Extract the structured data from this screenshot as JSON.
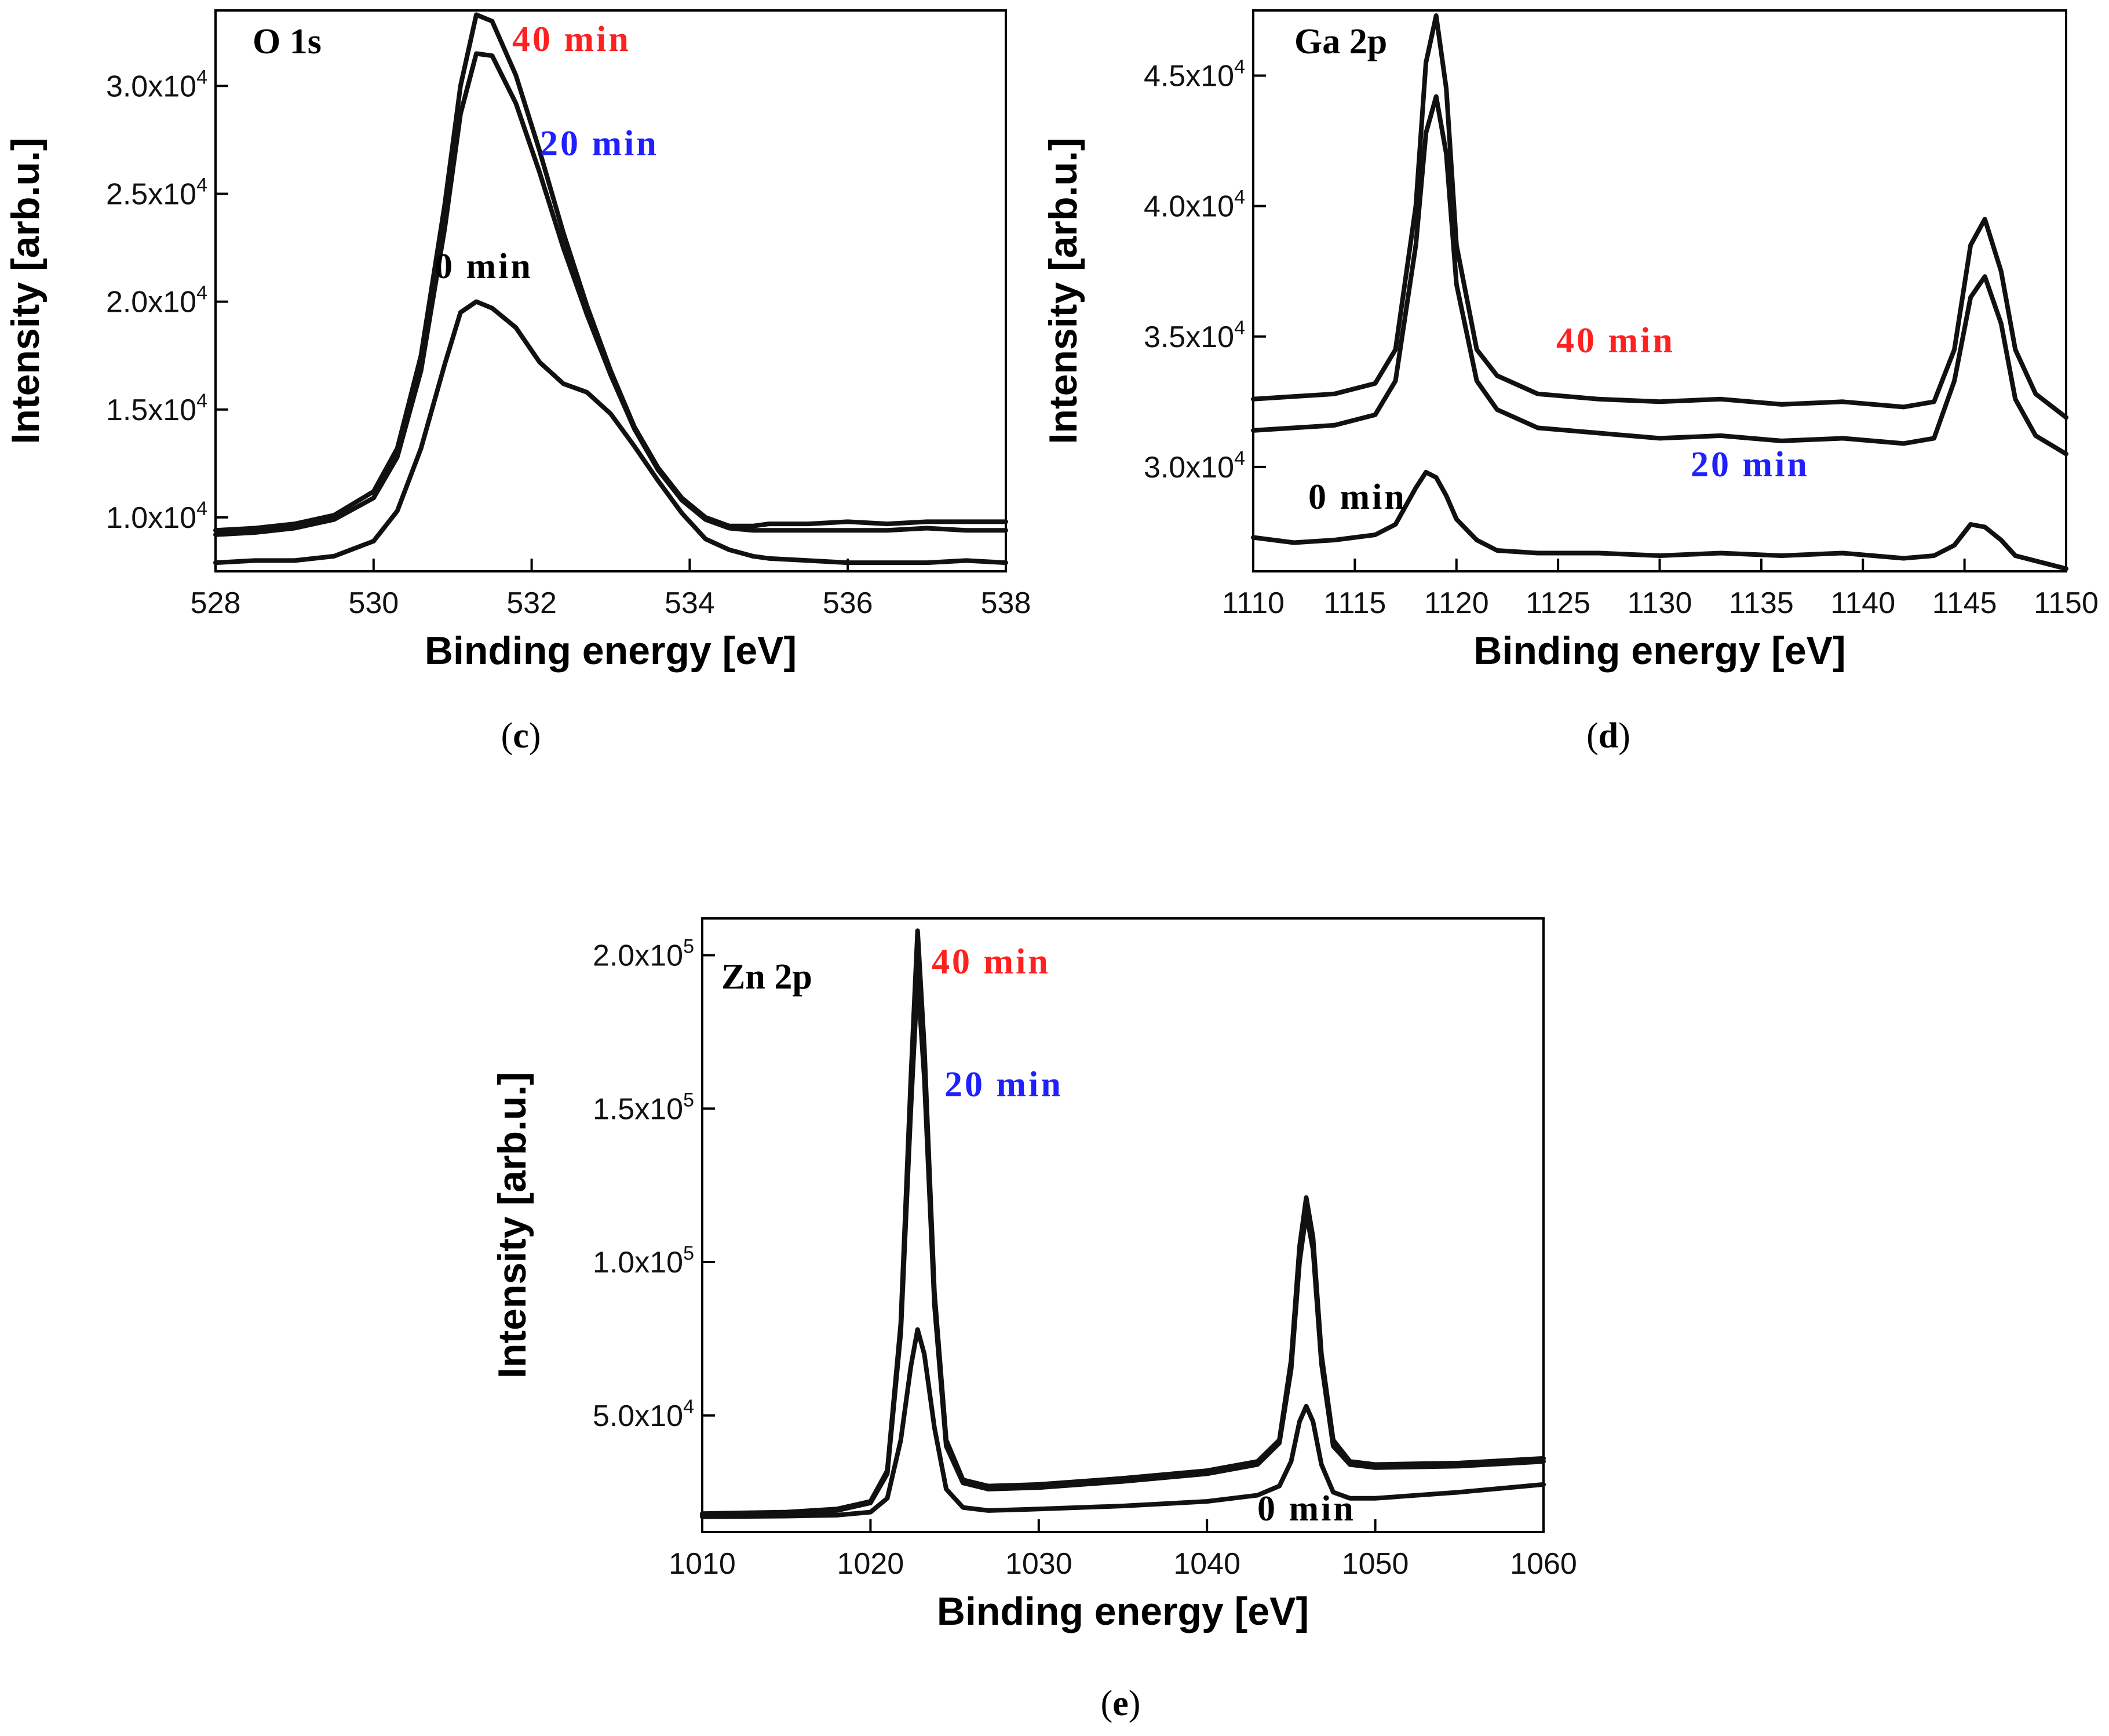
{
  "chart_data": [
    {
      "panel": "c",
      "type": "line",
      "title": "O 1s",
      "xlabel": "Binding energy [eV]",
      "ylabel": "Intensity [arb.u.]",
      "xlim": [
        528,
        538
      ],
      "ylim": [
        7500,
        33500
      ],
      "x_ticks": [
        528,
        530,
        532,
        534,
        536,
        538
      ],
      "y_ticks": [
        10000,
        15000,
        20000,
        25000,
        30000
      ],
      "y_tick_mantissa": [
        "1.0",
        "1.5",
        "2.0",
        "2.5",
        "3.0"
      ],
      "y_tick_exp": "4",
      "y_tick_base": "x10",
      "panel_label": "c",
      "series": [
        {
          "name": "40 min",
          "label_color": "#ff2020",
          "x": [
            528,
            528.5,
            529,
            529.5,
            530,
            530.3,
            530.6,
            530.9,
            531.1,
            531.3,
            531.5,
            531.8,
            532.1,
            532.4,
            532.7,
            533,
            533.3,
            533.6,
            533.9,
            534.2,
            534.5,
            534.8,
            535,
            535.5,
            536,
            536.5,
            537,
            537.5,
            538
          ],
          "y": [
            9400,
            9500,
            9700,
            10100,
            11200,
            13200,
            17500,
            24500,
            30000,
            33300,
            33000,
            30500,
            27000,
            23200,
            19800,
            16800,
            14200,
            12300,
            10900,
            10000,
            9600,
            9600,
            9700,
            9700,
            9800,
            9700,
            9800,
            9800,
            9800
          ]
        },
        {
          "name": "20 min",
          "label_color": "#2020ff",
          "x": [
            528,
            528.5,
            529,
            529.5,
            530,
            530.3,
            530.6,
            530.9,
            531.1,
            531.3,
            531.5,
            531.8,
            532.1,
            532.4,
            532.7,
            533,
            533.3,
            533.6,
            533.9,
            534.2,
            534.5,
            534.8,
            535,
            535.5,
            536,
            536.5,
            537,
            537.5,
            538
          ],
          "y": [
            9200,
            9300,
            9500,
            9900,
            10900,
            12800,
            16800,
            23400,
            28700,
            31500,
            31400,
            29200,
            26000,
            22500,
            19400,
            16600,
            14100,
            12200,
            10800,
            9900,
            9500,
            9400,
            9400,
            9400,
            9400,
            9400,
            9500,
            9400,
            9400
          ]
        },
        {
          "name": "0 min",
          "label_color": "#000000",
          "x": [
            528,
            528.5,
            529,
            529.5,
            530,
            530.3,
            530.6,
            530.9,
            531.1,
            531.3,
            531.5,
            531.8,
            532.1,
            532.4,
            532.7,
            533,
            533.3,
            533.6,
            533.9,
            534.2,
            534.5,
            534.8,
            535,
            535.5,
            536,
            536.5,
            537,
            537.5,
            538
          ],
          "y": [
            7900,
            8000,
            8000,
            8200,
            8900,
            10300,
            13200,
            17100,
            19500,
            20000,
            19700,
            18800,
            17200,
            16200,
            15800,
            14800,
            13300,
            11700,
            10200,
            9000,
            8500,
            8200,
            8100,
            8000,
            7900,
            7900,
            7900,
            8000,
            7900
          ]
        }
      ]
    },
    {
      "panel": "d",
      "type": "line",
      "title": "Ga 2p",
      "xlabel": "Binding energy [eV]",
      "ylabel": "Intensity [arb.u.]",
      "xlim": [
        1110,
        1150
      ],
      "ylim": [
        26000,
        47500
      ],
      "x_ticks": [
        1110,
        1115,
        1120,
        1125,
        1130,
        1135,
        1140,
        1145,
        1150
      ],
      "y_ticks": [
        30000,
        35000,
        40000,
        45000
      ],
      "y_tick_mantissa": [
        "3.0",
        "3.5",
        "4.0",
        "4.5"
      ],
      "y_tick_exp": "4",
      "y_tick_base": "x10",
      "panel_label": "d",
      "series": [
        {
          "name": "40 min",
          "label_color": "#ff2020",
          "x": [
            1110,
            1112,
            1114,
            1116,
            1117,
            1118,
            1118.5,
            1119,
            1119.5,
            1120,
            1121,
            1122,
            1124,
            1127,
            1130,
            1133,
            1136,
            1139,
            1142,
            1143.5,
            1144.5,
            1145.3,
            1146,
            1146.8,
            1147.5,
            1148.5,
            1150
          ],
          "y": [
            32600,
            32700,
            32800,
            33200,
            34500,
            40000,
            45500,
            47300,
            44500,
            38500,
            34500,
            33500,
            32800,
            32600,
            32500,
            32600,
            32400,
            32500,
            32300,
            32500,
            34500,
            38500,
            39500,
            37500,
            34500,
            32800,
            31900
          ]
        },
        {
          "name": "20 min",
          "label_color": "#2020ff",
          "x": [
            1110,
            1112,
            1114,
            1116,
            1117,
            1118,
            1118.5,
            1119,
            1119.5,
            1120,
            1121,
            1122,
            1124,
            1127,
            1130,
            1133,
            1136,
            1139,
            1142,
            1143.5,
            1144.5,
            1145.3,
            1146,
            1146.8,
            1147.5,
            1148.5,
            1150
          ],
          "y": [
            31400,
            31500,
            31600,
            32000,
            33300,
            38500,
            42800,
            44200,
            42000,
            37000,
            33300,
            32200,
            31500,
            31300,
            31100,
            31200,
            31000,
            31100,
            30900,
            31100,
            33300,
            36500,
            37300,
            35500,
            32600,
            31200,
            30500
          ]
        },
        {
          "name": "0 min",
          "label_color": "#000000",
          "x": [
            1110,
            1112,
            1114,
            1116,
            1117,
            1118,
            1118.5,
            1119,
            1119.5,
            1120,
            1121,
            1122,
            1124,
            1127,
            1130,
            1133,
            1136,
            1139,
            1142,
            1143.5,
            1144.5,
            1145.3,
            1146,
            1146.8,
            1147.5,
            1148.5,
            1150
          ],
          "y": [
            27300,
            27100,
            27200,
            27400,
            27800,
            29200,
            29800,
            29600,
            28900,
            28000,
            27200,
            26800,
            26700,
            26700,
            26600,
            26700,
            26600,
            26700,
            26500,
            26600,
            27000,
            27800,
            27700,
            27200,
            26600,
            26400,
            26100
          ]
        }
      ]
    },
    {
      "panel": "e",
      "type": "line",
      "title": "Zn 2p",
      "xlabel": "Binding energy [eV]",
      "ylabel": "Intensity [arb.u.]",
      "xlim": [
        1010,
        1060
      ],
      "ylim": [
        12000,
        212000
      ],
      "x_ticks": [
        1010,
        1020,
        1030,
        1040,
        1050,
        1060
      ],
      "y_ticks": [
        50000,
        100000,
        150000,
        200000
      ],
      "y_tick_mantissa": [
        "5.0",
        "1.0",
        "1.5",
        "2.0"
      ],
      "y_tick_exp": [
        "4",
        "5",
        "5",
        "5"
      ],
      "y_tick_base": "x10",
      "panel_label": "e",
      "series": [
        {
          "name": "40 min",
          "label_color": "#ff2020",
          "x": [
            1010,
            1015,
            1018,
            1020,
            1021,
            1021.8,
            1022.4,
            1022.8,
            1023.2,
            1023.8,
            1024.5,
            1025.5,
            1027,
            1030,
            1035,
            1040,
            1043,
            1044.3,
            1045,
            1045.5,
            1045.9,
            1046.3,
            1046.8,
            1047.5,
            1048.5,
            1050,
            1055,
            1060
          ],
          "y": [
            18000,
            18500,
            19500,
            22000,
            32000,
            80000,
            160000,
            208000,
            170000,
            90000,
            42000,
            29000,
            27000,
            27500,
            29500,
            32000,
            35000,
            42000,
            68000,
            105000,
            121000,
            108000,
            70000,
            42000,
            35000,
            34000,
            34500,
            36000
          ]
        },
        {
          "name": "20 min",
          "label_color": "#2020ff",
          "x": [
            1010,
            1015,
            1018,
            1020,
            1021,
            1021.8,
            1022.4,
            1022.8,
            1023.2,
            1023.8,
            1024.5,
            1025.5,
            1027,
            1030,
            1035,
            1040,
            1043,
            1044.3,
            1045,
            1045.5,
            1045.9,
            1046.3,
            1046.8,
            1047.5,
            1048.5,
            1050,
            1055,
            1060
          ],
          "y": [
            17500,
            18000,
            19000,
            21500,
            31000,
            77000,
            150000,
            193000,
            160000,
            86000,
            40000,
            28000,
            26000,
            26500,
            28500,
            31000,
            34000,
            41000,
            65000,
            100000,
            116000,
            104000,
            67000,
            40000,
            34000,
            33000,
            33500,
            35000
          ]
        },
        {
          "name": "0 min",
          "label_color": "#000000",
          "x": [
            1010,
            1015,
            1018,
            1020,
            1021,
            1021.8,
            1022.4,
            1022.8,
            1023.2,
            1023.8,
            1024.5,
            1025.5,
            1027,
            1030,
            1035,
            1040,
            1043,
            1044.3,
            1045,
            1045.5,
            1045.9,
            1046.3,
            1046.8,
            1047.5,
            1048.5,
            1050,
            1055,
            1060
          ],
          "y": [
            17000,
            17200,
            17500,
            18500,
            23000,
            42000,
            66000,
            78000,
            70000,
            46000,
            26000,
            20000,
            19000,
            19500,
            20500,
            22000,
            24000,
            27000,
            35000,
            48000,
            53000,
            48000,
            34000,
            25000,
            23000,
            23000,
            25000,
            27500
          ]
        }
      ]
    }
  ]
}
